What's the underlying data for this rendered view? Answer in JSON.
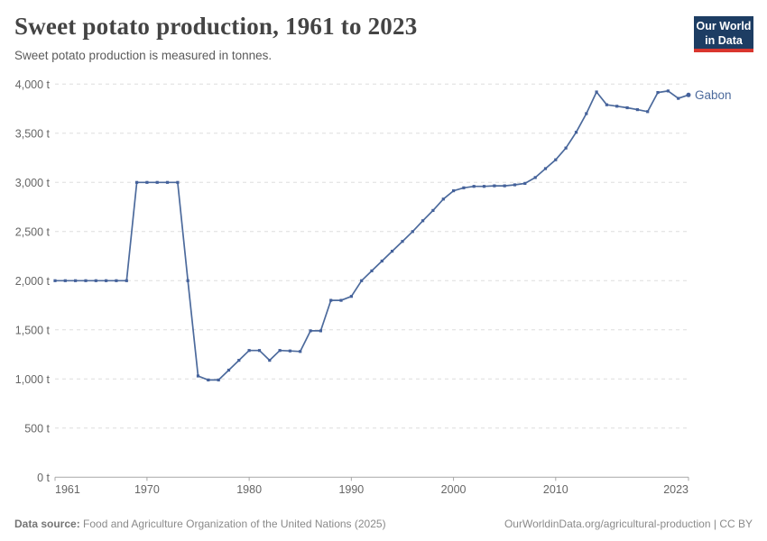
{
  "header": {
    "title": "Sweet potato production, 1961 to 2023",
    "subtitle": "Sweet potato production is measured in tonnes."
  },
  "logo": {
    "line1": "Our World",
    "line2": "in Data"
  },
  "chart_data": {
    "type": "line",
    "title": "Sweet potato production, 1961 to 2023",
    "unit": "tonnes",
    "x_range": [
      1961,
      2023
    ],
    "xticks": [
      1961,
      1970,
      1980,
      1990,
      2000,
      2010,
      2023
    ],
    "ylim": [
      0,
      4000
    ],
    "yticks": [
      {
        "value": 0,
        "label": "0 t"
      },
      {
        "value": 500,
        "label": "500 t"
      },
      {
        "value": 1000,
        "label": "1,000 t"
      },
      {
        "value": 1500,
        "label": "1,500 t"
      },
      {
        "value": 2000,
        "label": "2,000 t"
      },
      {
        "value": 2500,
        "label": "2,500 t"
      },
      {
        "value": 3000,
        "label": "3,000 t"
      },
      {
        "value": 3500,
        "label": "3,500 t"
      },
      {
        "value": 4000,
        "label": "4,000 t"
      }
    ],
    "grid": true,
    "legend_position": "end-of-line",
    "series": [
      {
        "name": "Gabon",
        "values": [
          2000,
          2000,
          2000,
          2000,
          2000,
          2000,
          2000,
          2000,
          3000,
          3000,
          3000,
          3000,
          3000,
          2000,
          1030,
          990,
          990,
          1090,
          1190,
          1290,
          1290,
          1190,
          1290,
          1285,
          1280,
          1490,
          1490,
          1800,
          1800,
          1840,
          2000,
          2100,
          2200,
          2300,
          2400,
          2500,
          2610,
          2715,
          2830,
          2915,
          2945,
          2960,
          2960,
          2965,
          2965,
          2975,
          2990,
          3050,
          3140,
          3230,
          3350,
          3510,
          3700,
          3920,
          3790,
          3775,
          3760,
          3740,
          3720,
          3915,
          3930,
          3855,
          3890
        ]
      }
    ]
  },
  "footer": {
    "source_label": "Data source:",
    "source_text": " Food and Agriculture Organization of the United Nations (2025)",
    "link_text": "OurWorldinData.org/agricultural-production",
    "separator": " | ",
    "license": "CC BY"
  },
  "colors": {
    "line": "#4c6a9c",
    "marker": "#44619b",
    "logo_navy": "#1d3d63",
    "logo_red": "#d9362e",
    "grid": "#dddddd",
    "axis_text": "#666666"
  }
}
